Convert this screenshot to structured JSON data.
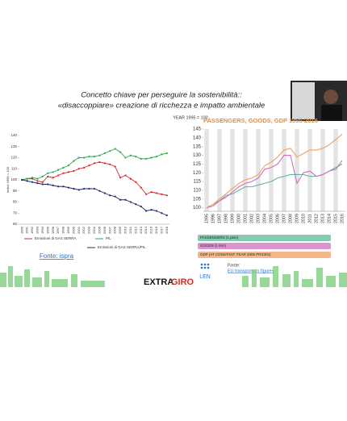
{
  "slide": {
    "title_line1": "Concetto chiave per perseguire la sostenibilità::",
    "title_line2": "«disaccoppiare» creazione di ricchezza e impatto ambientale",
    "source_left": "Fonte: ispra",
    "logo_a": "EXTRA",
    "logo_b": "GIRO",
    "source_right_label": "Fonte:",
    "source_right_link": "EU transports in figures",
    "len_logo": "LEN"
  },
  "chart_data": [
    {
      "type": "line",
      "y_label": "Indice 1990 = 100",
      "categories": [
        "1990",
        "1991",
        "1992",
        "1993",
        "1994",
        "1995",
        "1996",
        "1997",
        "1998",
        "1999",
        "2000",
        "2001",
        "2002",
        "2003",
        "2004",
        "2005",
        "2006",
        "2007",
        "2008",
        "2009",
        "2010",
        "2011",
        "2012",
        "2013",
        "2014",
        "2015",
        "2016",
        "2017",
        "2018"
      ],
      "series": [
        {
          "name": "Emissioni di GAS SERRA",
          "color": "#d42a2a",
          "values": [
            100,
            101,
            101,
            99,
            98,
            103,
            102,
            104,
            106,
            107,
            108,
            110,
            111,
            113,
            115,
            116,
            115,
            114,
            112,
            102,
            104,
            101,
            98,
            93,
            87,
            89,
            88,
            87,
            86
          ]
        },
        {
          "name": "PIL",
          "color": "#2fa84f",
          "values": [
            100,
            101,
            102,
            101,
            103,
            106,
            107,
            109,
            111,
            113,
            117,
            120,
            120,
            121,
            121,
            122,
            124,
            126,
            128,
            125,
            120,
            122,
            121,
            119,
            119,
            120,
            121,
            123,
            124
          ]
        },
        {
          "name": "Emissioni di GAS SERRA/PIL",
          "color": "#1c2a6e",
          "values": [
            100,
            99,
            98,
            97,
            96,
            96,
            95,
            94,
            94,
            93,
            92,
            91,
            92,
            92,
            92,
            90,
            88,
            86,
            85,
            82,
            82,
            80,
            78,
            76,
            72,
            73,
            72,
            70,
            68
          ]
        }
      ],
      "ylim": [
        60,
        140
      ],
      "yticks": [
        60,
        70,
        80,
        90,
        100,
        110,
        120,
        130,
        140
      ],
      "grid": false,
      "legend": "bottom"
    },
    {
      "type": "line",
      "title": "PASSENGERS, GOODS, GDP 1995-2016",
      "y_label": "YEAR 1995 = 100",
      "categories": [
        "1995",
        "1996",
        "1997",
        "1998",
        "1999",
        "2000",
        "2001",
        "2002",
        "2003",
        "2004",
        "2005",
        "2006",
        "2007",
        "2008",
        "2009",
        "2010",
        "2011",
        "2012",
        "2013",
        "2014",
        "2015",
        "2016"
      ],
      "series": [
        {
          "name": "PASSENGERS (1 pkm)",
          "color": "#5cb89a",
          "values": [
            100,
            102,
            104,
            107,
            108,
            110,
            112,
            112,
            113,
            114,
            115,
            117,
            118,
            119,
            119,
            119,
            118,
            118,
            119,
            121,
            123,
            125
          ]
        },
        {
          "name": "GOODS (1 tkm)",
          "color": "#d16fc0",
          "values": [
            100,
            101,
            104,
            106,
            109,
            112,
            114,
            115,
            117,
            122,
            123,
            125,
            130,
            130,
            114,
            120,
            121,
            118,
            119,
            121,
            122,
            127
          ]
        },
        {
          "name": "GDP (AT CONSTANT YEAR 2005 PRICES)",
          "color": "#f0a060",
          "values": [
            100,
            102,
            105,
            108,
            111,
            114,
            116,
            117,
            119,
            124,
            126,
            129,
            133,
            134,
            129,
            131,
            133,
            133,
            134,
            136,
            139,
            142
          ]
        }
      ],
      "ylim": [
        98,
        145
      ],
      "yticks": [
        100,
        105,
        110,
        115,
        120,
        125,
        130,
        135,
        140,
        145
      ],
      "grid": "column-bands",
      "legend": "bottom"
    }
  ]
}
